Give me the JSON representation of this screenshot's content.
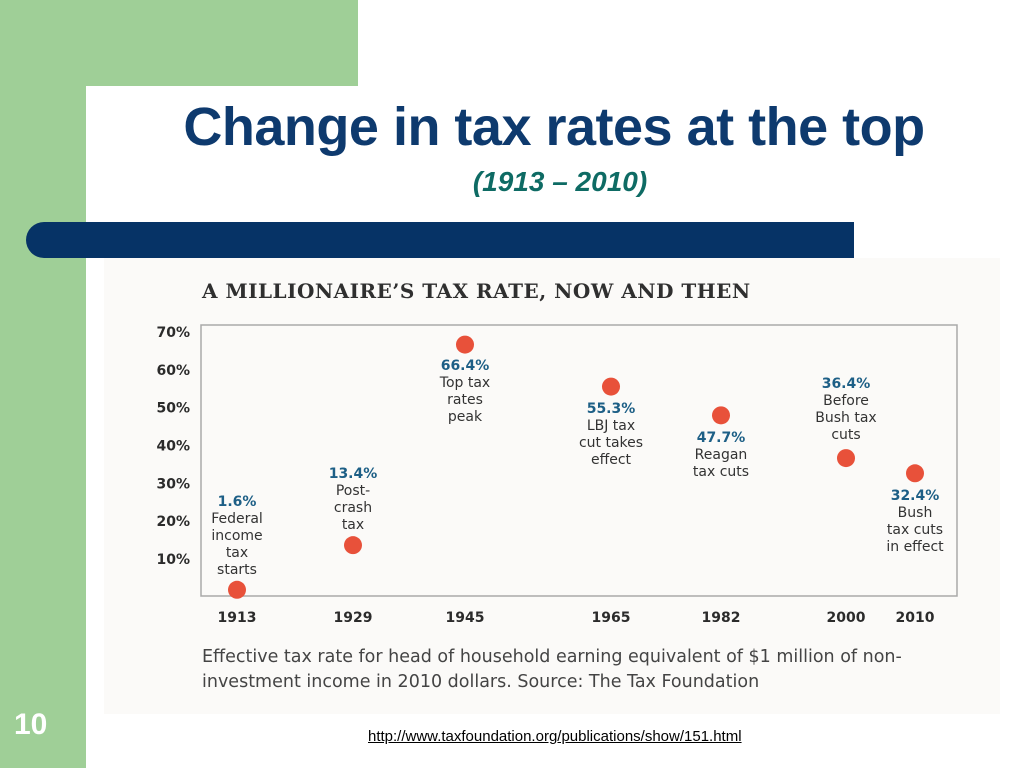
{
  "slide": {
    "title": "Change in tax rates at the top",
    "subtitle": "(1913 – 2010)",
    "number": "10",
    "link": "http://www.taxfoundation.org/publications/show/151.html"
  },
  "colors": {
    "title": "#0e3a6e",
    "subtitle": "#0e6b64",
    "side_bar": "#9fcf97",
    "band": "#063366",
    "marker": "#e8513a"
  },
  "chart_data": {
    "type": "scatter",
    "title": "A MILLIONAIRE’S TAX RATE, NOW AND THEN",
    "caption": [
      "Effective tax rate for head of household earning equivalent of $1 million of non-",
      "investment income in 2010 dollars. Source: The Tax Foundation"
    ],
    "y_ticks": [
      "70%",
      "60%",
      "50%",
      "40%",
      "30%",
      "20%",
      "10%"
    ],
    "ylim": [
      0,
      70
    ],
    "x_categories": [
      "1913",
      "1929",
      "1945",
      "1965",
      "1982",
      "2000",
      "2010"
    ],
    "points": [
      {
        "year": "1913",
        "value": 1.6,
        "label_value": "1.6%",
        "note": [
          "Federal",
          "income",
          "tax",
          "starts"
        ]
      },
      {
        "year": "1929",
        "value": 13.4,
        "label_value": "13.4%",
        "note": [
          "Post-",
          "crash",
          "tax"
        ]
      },
      {
        "year": "1945",
        "value": 66.4,
        "label_value": "66.4%",
        "note": [
          "Top tax",
          "rates",
          "peak"
        ]
      },
      {
        "year": "1965",
        "value": 55.3,
        "label_value": "55.3%",
        "note": [
          "LBJ tax",
          "cut takes",
          "effect"
        ]
      },
      {
        "year": "1982",
        "value": 47.7,
        "label_value": "47.7%",
        "note": [
          "Reagan",
          "tax cuts"
        ]
      },
      {
        "year": "2000",
        "value": 36.4,
        "label_value": "36.4%",
        "note": [
          "Before",
          "Bush tax",
          "cuts"
        ]
      },
      {
        "year": "2010",
        "value": 32.4,
        "label_value": "32.4%",
        "note": [
          "Bush",
          "tax cuts",
          "in  effect"
        ]
      }
    ]
  }
}
